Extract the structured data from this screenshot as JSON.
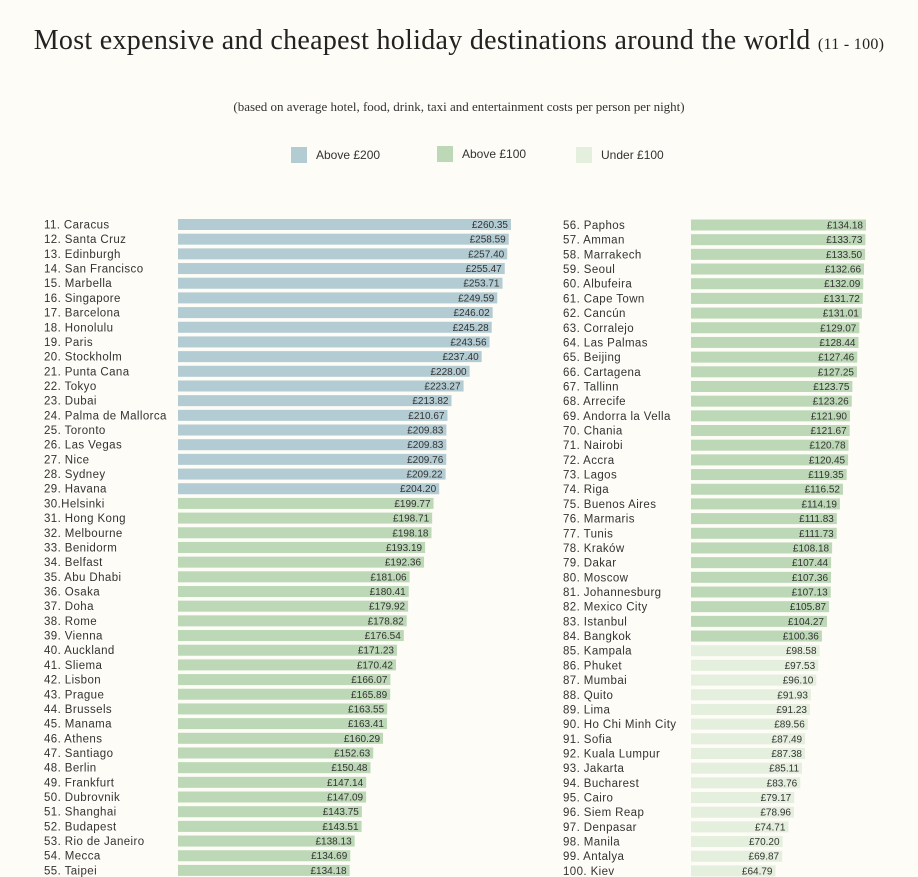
{
  "chart_data": {
    "type": "bar",
    "orientation": "horizontal",
    "title": "Most expensive and cheapest holiday destinations around the world",
    "title_range": "(11 - 100)",
    "subtitle": "(based on average hotel, food, drink, taxi and entertainment costs per person per night)",
    "xlabel": "",
    "ylabel": "",
    "currency": "£",
    "legend": [
      {
        "label": "Above £200",
        "color": "#b3ccd3"
      },
      {
        "label": "Above £100",
        "color": "#bcd8b6"
      },
      {
        "label": "Under £100",
        "color": "#e5efde"
      }
    ],
    "columns": [
      {
        "ranks": [
          11,
          12,
          13,
          14,
          15,
          16,
          17,
          18,
          19,
          20,
          21,
          22,
          23,
          24,
          25,
          26,
          27,
          28,
          29,
          30,
          31,
          32,
          33,
          34,
          35,
          36,
          37,
          38,
          39,
          40,
          41,
          42,
          43,
          44,
          45,
          46,
          47,
          48,
          49,
          50,
          51,
          52,
          53,
          54,
          55
        ],
        "labels": [
          "11. Caracus",
          "12. Santa Cruz",
          "13. Edinburgh",
          "14. San Francisco",
          "15. Marbella",
          "16. Singapore",
          "17. Barcelona",
          "18. Honolulu",
          "19. Paris",
          "20. Stockholm",
          "21. Punta Cana",
          "22. Tokyo",
          "23. Dubai",
          "24. Palma de Mallorca",
          "25. Toronto",
          "26. Las Vegas",
          "27. Nice",
          "28. Sydney",
          "29. Havana",
          "30.Helsinki",
          "31. Hong Kong",
          "32. Melbourne",
          "33. Benidorm",
          "34. Belfast",
          "35. Abu Dhabi",
          "36. Osaka",
          "37. Doha",
          "38. Rome",
          "39. Vienna",
          "40. Auckland",
          "41. Sliema",
          "42. Lisbon",
          "43. Prague",
          "44. Brussels",
          "45. Manama",
          "46. Athens",
          "47. Santiago",
          "48. Berlin",
          "49. Frankfurt",
          "50. Dubrovnik",
          "51. Shanghai",
          "52. Budapest",
          "53. Rio de Janeiro",
          "54. Mecca",
          "55. Taipei"
        ],
        "values": [
          260.35,
          258.59,
          257.4,
          255.47,
          253.71,
          249.59,
          246.02,
          245.28,
          243.56,
          237.4,
          228.0,
          223.27,
          213.82,
          210.67,
          209.83,
          209.83,
          209.76,
          209.22,
          204.2,
          199.77,
          198.71,
          198.18,
          193.19,
          192.36,
          181.06,
          180.41,
          179.92,
          178.82,
          176.54,
          171.23,
          170.42,
          166.07,
          165.89,
          163.55,
          163.41,
          160.29,
          152.63,
          150.48,
          147.14,
          147.09,
          143.75,
          143.51,
          138.13,
          134.69,
          134.18
        ],
        "value_labels": [
          "£260.35",
          "£258.59",
          "£257.40",
          "£255.47",
          "£253.71",
          "£249.59",
          "£246.02",
          "£245.28",
          "£243.56",
          "£237.40",
          "£228.00",
          "£223.27",
          "£213.82",
          "£210.67",
          "£209.83",
          "£209.83",
          "£209.76",
          "£209.22",
          "£204.20",
          "£199.77",
          "£198.71",
          "£198.18",
          "£193.19",
          "£192.36",
          "£181.06",
          "£180.41",
          "£179.92",
          "£178.82",
          "£176.54",
          "£171.23",
          "£170.42",
          "£166.07",
          "£165.89",
          "£163.55",
          "£163.41",
          "£160.29",
          "£152.63",
          "£150.48",
          "£147.14",
          "£147.09",
          "£143.75",
          "£143.51",
          "£138.13",
          "£134.69",
          "£134.18"
        ]
      },
      {
        "ranks": [
          56,
          57,
          58,
          59,
          60,
          61,
          62,
          63,
          64,
          65,
          66,
          67,
          68,
          69,
          70,
          71,
          72,
          73,
          74,
          75,
          76,
          77,
          78,
          79,
          80,
          81,
          82,
          83,
          84,
          85,
          86,
          87,
          88,
          89,
          90,
          91,
          92,
          93,
          94,
          95,
          96,
          97,
          98,
          99,
          100
        ],
        "labels": [
          "56. Paphos",
          "57. Amman",
          "58. Marrakech",
          "59. Seoul",
          "60. Albufeira",
          "61. Cape Town",
          "62. Cancún",
          "63. Corralejo",
          "64. Las Palmas",
          "65. Beijing",
          "66. Cartagena",
          "67. Tallinn",
          "68. Arrecife",
          "69. Andorra la Vella",
          "70. Chania",
          "71. Nairobi",
          "72. Accra",
          "73. Lagos",
          "74. Riga",
          "75. Buenos Aires",
          "76. Marmaris",
          "77. Tunis",
          "78. Kraków",
          "79. Dakar",
          "80. Moscow",
          "81. Johannesburg",
          "82. Mexico City",
          "83. Istanbul",
          "84. Bangkok",
          "85. Kampala",
          "86. Phuket",
          "87. Mumbai",
          "88. Quito",
          "89. Lima",
          "90. Ho Chi Minh City",
          "91. Sofia",
          "92. Kuala Lumpur",
          "93. Jakarta",
          "94. Bucharest",
          "95. Cairo",
          "96. Siem Reap",
          "97. Denpasar",
          "98. Manila",
          "99. Antalya",
          "100. Kiev"
        ],
        "values": [
          134.18,
          133.73,
          133.5,
          132.66,
          132.09,
          131.72,
          131.01,
          129.07,
          128.44,
          127.46,
          127.25,
          123.75,
          123.26,
          121.9,
          121.67,
          120.78,
          120.45,
          119.35,
          116.52,
          114.19,
          111.83,
          111.73,
          108.18,
          107.44,
          107.36,
          107.13,
          105.87,
          104.27,
          100.36,
          98.58,
          97.53,
          96.1,
          91.93,
          91.23,
          89.56,
          87.49,
          87.38,
          85.11,
          83.76,
          79.17,
          78.96,
          74.71,
          70.2,
          69.87,
          64.79
        ],
        "value_labels": [
          "£134.18",
          "£133.73",
          "£133.50",
          "£132.66",
          "£132.09",
          "£131.72",
          "£131.01",
          "£129.07",
          "£128.44",
          "£127.46",
          "£127.25",
          "£123.75",
          "£123.26",
          "£121.90",
          "£121.67",
          "£120.78",
          "£120.45",
          "£119.35",
          "£116.52",
          "£114.19",
          "£111.83",
          "£111.73",
          "£108.18",
          "£107.44",
          "£107.36",
          "£107.13",
          "£105.87",
          "£104.27",
          "£100.36",
          "£98.58",
          "£97.53",
          "£96.10",
          "£91.93",
          "£91.23",
          "£89.56",
          "£87.49",
          "£87.38",
          "£85.11",
          "£83.76",
          "£79.17",
          "£78.96",
          "£74.71",
          "£70.20",
          "£69.87",
          "£64.79"
        ]
      }
    ]
  }
}
